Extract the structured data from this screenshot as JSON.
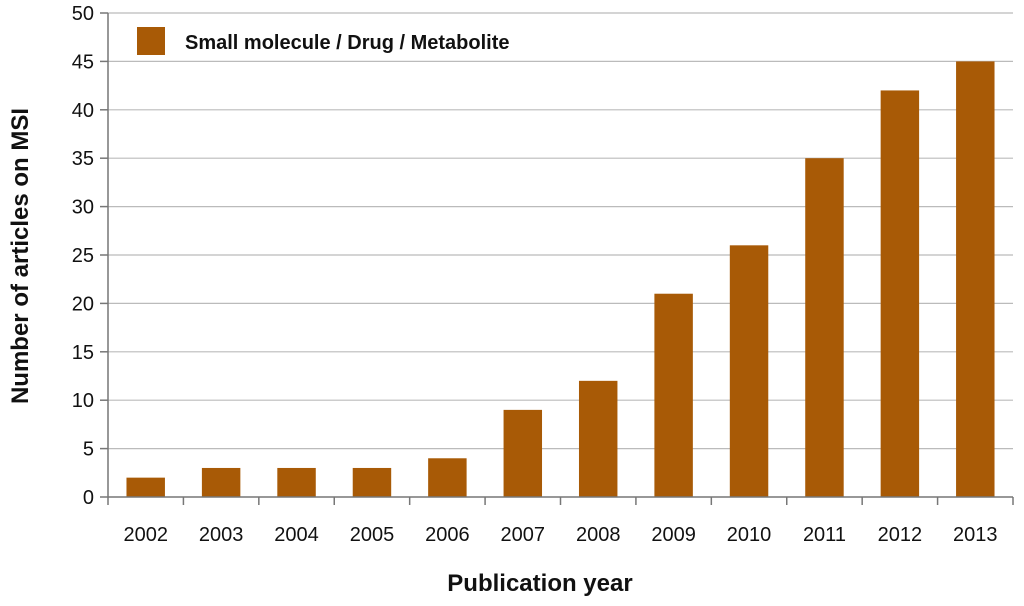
{
  "chart_data": {
    "type": "bar",
    "categories": [
      "2002",
      "2003",
      "2004",
      "2005",
      "2006",
      "2007",
      "2008",
      "2009",
      "2010",
      "2011",
      "2012",
      "2013"
    ],
    "series": [
      {
        "name": "Small molecule / Drug / Metabolite",
        "values": [
          2,
          3,
          3,
          3,
          4,
          9,
          12,
          21,
          26,
          35,
          42,
          45
        ]
      }
    ],
    "title": "",
    "xlabel": "Publication year",
    "ylabel": "Number of articles on MSI",
    "ylim": [
      0,
      50
    ],
    "yticks": [
      0,
      5,
      10,
      15,
      20,
      25,
      30,
      35,
      40,
      45,
      50
    ],
    "grid": true,
    "legend_position": "top-left",
    "colors": {
      "bar": "#A85A06",
      "grid": "#BBBBBB",
      "axis": "#777777"
    }
  }
}
